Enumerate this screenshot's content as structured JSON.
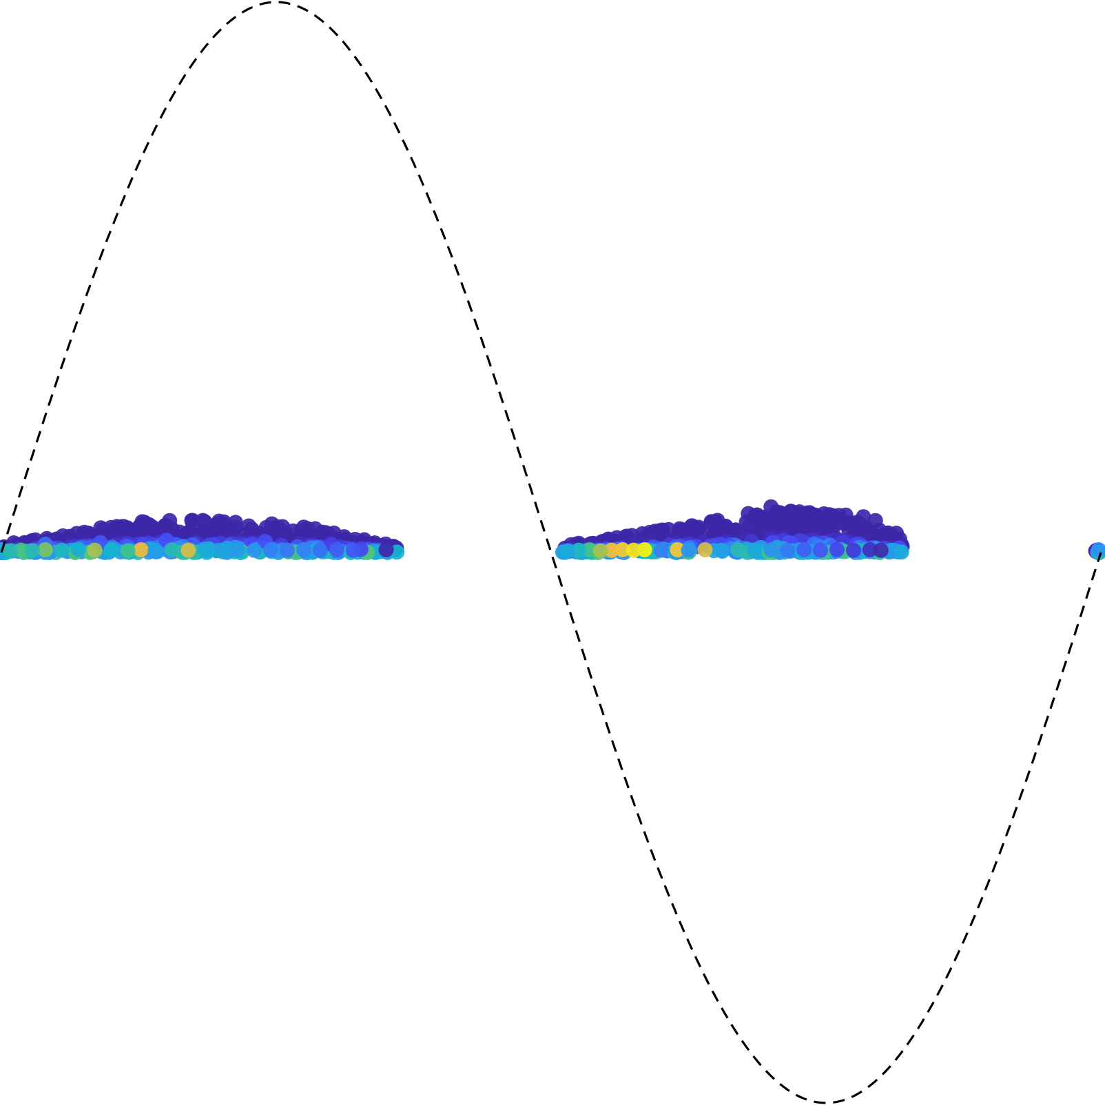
{
  "chart_data": {
    "type": "scatter",
    "grid": false,
    "axes_visible": false,
    "xlim": [
      0,
      1
    ],
    "ylim": [
      -1,
      1
    ],
    "colormap": [
      "#3e26a8",
      "#4648f5",
      "#2f8ef4",
      "#13b5ce",
      "#5cc769",
      "#f4ba3c",
      "#f8f40d"
    ],
    "reference_curve": {
      "style": "dashed",
      "color": "#000000",
      "function": "sin(2*pi*x)",
      "samples": [
        [
          0.0,
          0.0
        ],
        [
          0.05,
          0.309
        ],
        [
          0.1,
          0.588
        ],
        [
          0.15,
          0.809
        ],
        [
          0.2,
          0.951
        ],
        [
          0.25,
          1.0
        ],
        [
          0.3,
          0.951
        ],
        [
          0.35,
          0.809
        ],
        [
          0.4,
          0.588
        ],
        [
          0.45,
          0.309
        ],
        [
          0.5,
          0.0
        ],
        [
          0.55,
          -0.309
        ],
        [
          0.6,
          -0.588
        ],
        [
          0.65,
          -0.809
        ],
        [
          0.7,
          -0.951
        ],
        [
          0.75,
          -1.0
        ],
        [
          0.8,
          -0.951
        ],
        [
          0.85,
          -0.809
        ],
        [
          0.9,
          -0.588
        ],
        [
          0.95,
          -0.309
        ],
        [
          1.0,
          0.0
        ]
      ]
    },
    "clusters": [
      {
        "x_range": [
          0.0,
          0.36
        ],
        "height_profile": [
          [
            0.0,
            0.015
          ],
          [
            0.06,
            0.035
          ],
          [
            0.13,
            0.058
          ],
          [
            0.2,
            0.06
          ],
          [
            0.27,
            0.05
          ],
          [
            0.36,
            0.012
          ]
        ]
      },
      {
        "x_range": [
          0.51,
          0.82
        ],
        "height_profile": [
          [
            0.51,
            0.012
          ],
          [
            0.58,
            0.035
          ],
          [
            0.65,
            0.06
          ],
          [
            0.7,
            0.08
          ],
          [
            0.76,
            0.07
          ],
          [
            0.82,
            0.03
          ]
        ]
      },
      {
        "x_range": [
          0.995,
          1.0
        ],
        "height_profile": [
          [
            0.995,
            0.005
          ],
          [
            1.0,
            0.005
          ]
        ]
      }
    ],
    "points": [
      [
        0.0,
        0.005,
        0.45
      ],
      [
        0.008,
        0.003,
        0.55
      ],
      [
        0.018,
        0.004,
        0.62
      ],
      [
        0.028,
        0.003,
        0.55
      ],
      [
        0.04,
        0.005,
        0.7
      ],
      [
        0.055,
        0.004,
        0.52
      ],
      [
        0.07,
        0.006,
        0.48
      ],
      [
        0.085,
        0.004,
        0.75
      ],
      [
        0.1,
        0.005,
        0.5
      ],
      [
        0.115,
        0.003,
        0.6
      ],
      [
        0.127,
        0.005,
        0.83
      ],
      [
        0.14,
        0.004,
        0.4
      ],
      [
        0.155,
        0.005,
        0.55
      ],
      [
        0.17,
        0.004,
        0.8
      ],
      [
        0.185,
        0.006,
        0.45
      ],
      [
        0.2,
        0.004,
        0.42
      ],
      [
        0.215,
        0.005,
        0.38
      ],
      [
        0.23,
        0.004,
        0.35
      ],
      [
        0.245,
        0.005,
        0.3
      ],
      [
        0.26,
        0.004,
        0.28
      ],
      [
        0.275,
        0.005,
        0.3
      ],
      [
        0.29,
        0.004,
        0.26
      ],
      [
        0.305,
        0.005,
        0.22
      ],
      [
        0.32,
        0.004,
        0.2
      ],
      [
        0.327,
        0.006,
        0.15
      ],
      [
        0.04,
        0.015,
        0.25
      ],
      [
        0.09,
        0.018,
        0.2
      ],
      [
        0.15,
        0.022,
        0.18
      ],
      [
        0.24,
        0.02,
        0.18
      ],
      [
        0.3,
        0.015,
        0.12
      ],
      [
        0.13,
        0.055,
        0.0
      ],
      [
        0.153,
        0.058,
        0.0
      ],
      [
        0.185,
        0.056,
        0.0
      ],
      [
        0.198,
        0.057,
        0.0
      ],
      [
        0.246,
        0.052,
        0.0
      ],
      [
        0.275,
        0.046,
        0.0
      ],
      [
        0.35,
        0.005,
        0.0
      ],
      [
        0.515,
        0.003,
        0.45
      ],
      [
        0.525,
        0.004,
        0.52
      ],
      [
        0.535,
        0.005,
        0.62
      ],
      [
        0.545,
        0.003,
        0.75
      ],
      [
        0.555,
        0.004,
        0.85
      ],
      [
        0.565,
        0.005,
        0.88
      ],
      [
        0.575,
        0.004,
        0.95
      ],
      [
        0.585,
        0.005,
        1.0
      ],
      [
        0.6,
        0.004,
        0.3
      ],
      [
        0.615,
        0.005,
        0.88
      ],
      [
        0.625,
        0.004,
        0.35
      ],
      [
        0.64,
        0.005,
        0.8
      ],
      [
        0.655,
        0.004,
        0.4
      ],
      [
        0.67,
        0.005,
        0.55
      ],
      [
        0.685,
        0.004,
        0.45
      ],
      [
        0.7,
        0.005,
        0.35
      ],
      [
        0.715,
        0.004,
        0.28
      ],
      [
        0.73,
        0.005,
        0.22
      ],
      [
        0.745,
        0.004,
        0.2
      ],
      [
        0.76,
        0.005,
        0.15
      ],
      [
        0.775,
        0.004,
        0.1
      ],
      [
        0.79,
        0.005,
        0.05
      ],
      [
        0.8,
        0.004,
        0.02
      ],
      [
        0.7,
        0.083,
        0.0
      ],
      [
        0.718,
        0.075,
        0.0
      ],
      [
        0.733,
        0.07,
        0.0
      ],
      [
        0.768,
        0.068,
        0.0
      ],
      [
        0.784,
        0.065,
        0.0
      ],
      [
        0.795,
        0.058,
        0.0
      ],
      [
        0.814,
        0.035,
        0.0
      ],
      [
        0.998,
        0.005,
        0.35
      ]
    ]
  }
}
